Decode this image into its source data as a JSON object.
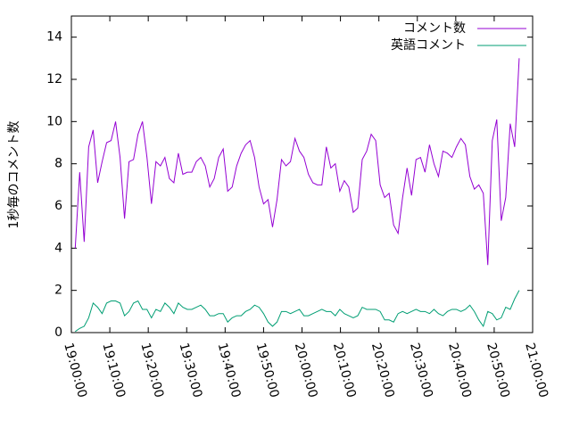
{
  "chart_data": {
    "type": "line",
    "y_label": "1秒毎のコメント数",
    "x": [
      "19:01:00",
      "19:02:10",
      "19:03:20",
      "19:04:30",
      "19:05:40",
      "19:06:50",
      "19:08:00",
      "19:09:10",
      "19:10:20",
      "19:11:30",
      "19:12:40",
      "19:13:50",
      "19:15:00",
      "19:16:10",
      "19:17:20",
      "19:18:30",
      "19:19:40",
      "19:20:50",
      "19:22:00",
      "19:23:10",
      "19:24:20",
      "19:25:30",
      "19:26:40",
      "19:27:50",
      "19:29:00",
      "19:30:10",
      "19:31:20",
      "19:32:30",
      "19:33:40",
      "19:34:50",
      "19:36:00",
      "19:37:10",
      "19:38:20",
      "19:39:30",
      "19:40:40",
      "19:41:50",
      "19:43:00",
      "19:44:10",
      "19:45:20",
      "19:46:30",
      "19:47:40",
      "19:48:50",
      "19:50:00",
      "19:51:10",
      "19:52:20",
      "19:53:30",
      "19:54:40",
      "19:55:50",
      "19:57:00",
      "19:58:10",
      "19:59:20",
      "20:00:30",
      "20:01:40",
      "20:02:50",
      "20:04:00",
      "20:05:10",
      "20:06:20",
      "20:07:30",
      "20:08:40",
      "20:09:50",
      "20:11:00",
      "20:12:10",
      "20:13:20",
      "20:14:30",
      "20:15:40",
      "20:16:50",
      "20:18:00",
      "20:19:10",
      "20:20:20",
      "20:21:30",
      "20:22:40",
      "20:23:50",
      "20:25:00",
      "20:26:10",
      "20:27:20",
      "20:28:30",
      "20:29:40",
      "20:30:50",
      "20:32:00",
      "20:33:10",
      "20:34:20",
      "20:35:30",
      "20:36:40",
      "20:37:50",
      "20:39:00",
      "20:40:10",
      "20:41:20",
      "20:42:30",
      "20:43:40",
      "20:44:50",
      "20:46:00",
      "20:47:10",
      "20:48:20",
      "20:49:30",
      "20:50:40",
      "20:51:50",
      "20:53:00",
      "20:54:10",
      "20:55:20",
      "20:56:30"
    ],
    "series": [
      {
        "name": "コメント数",
        "color": "#9400d3",
        "values": [
          4.0,
          7.6,
          4.3,
          8.8,
          9.6,
          7.1,
          8.1,
          9.0,
          9.1,
          10.0,
          8.3,
          5.4,
          8.1,
          8.2,
          9.4,
          10.0,
          8.3,
          6.1,
          8.1,
          7.9,
          8.3,
          7.3,
          7.1,
          8.5,
          7.5,
          7.6,
          7.6,
          8.1,
          8.3,
          7.9,
          6.9,
          7.3,
          8.3,
          8.7,
          6.7,
          6.9,
          7.9,
          8.5,
          8.9,
          9.1,
          8.3,
          6.9,
          6.1,
          6.3,
          5.0,
          6.3,
          8.2,
          7.9,
          8.1,
          9.2,
          8.6,
          8.3,
          7.5,
          7.1,
          7.0,
          7.0,
          8.8,
          7.8,
          8.0,
          6.7,
          7.2,
          6.9,
          5.7,
          5.9,
          8.2,
          8.6,
          9.4,
          9.1,
          7.0,
          6.4,
          6.6,
          5.1,
          4.7,
          6.4,
          7.8,
          6.5,
          8.2,
          8.3,
          7.6,
          8.9,
          8.0,
          7.4,
          8.6,
          8.5,
          8.3,
          8.8,
          9.2,
          8.9,
          7.4,
          6.8,
          7.0,
          6.6,
          3.2,
          9.1,
          10.1,
          5.3,
          6.4,
          9.9,
          8.8,
          13.0
        ]
      },
      {
        "name": "英語コメント",
        "color": "#009e73",
        "values": [
          0.05,
          0.2,
          0.3,
          0.7,
          1.4,
          1.2,
          0.9,
          1.4,
          1.5,
          1.5,
          1.4,
          0.8,
          1.0,
          1.4,
          1.5,
          1.1,
          1.1,
          0.7,
          1.1,
          1.0,
          1.4,
          1.2,
          0.9,
          1.4,
          1.2,
          1.1,
          1.1,
          1.2,
          1.3,
          1.1,
          0.8,
          0.8,
          0.9,
          0.9,
          0.5,
          0.7,
          0.8,
          0.8,
          1.0,
          1.1,
          1.3,
          1.2,
          0.9,
          0.5,
          0.3,
          0.5,
          1.0,
          1.0,
          0.9,
          1.0,
          1.1,
          0.8,
          0.8,
          0.9,
          1.0,
          1.1,
          1.0,
          1.0,
          0.8,
          1.1,
          0.9,
          0.8,
          0.7,
          0.8,
          1.2,
          1.1,
          1.1,
          1.1,
          1.0,
          0.6,
          0.6,
          0.5,
          0.9,
          1.0,
          0.9,
          1.0,
          1.1,
          1.0,
          1.0,
          0.9,
          1.1,
          0.9,
          0.8,
          1.0,
          1.1,
          1.1,
          1.0,
          1.1,
          1.3,
          1.0,
          0.6,
          0.3,
          1.0,
          0.9,
          0.6,
          0.7,
          1.2,
          1.1,
          1.6,
          2.0
        ]
      }
    ],
    "xlim": [
      "19:00:00",
      "21:00:00"
    ],
    "xticks": [
      "19:00:00",
      "19:10:00",
      "19:20:00",
      "19:30:00",
      "19:40:00",
      "19:50:00",
      "20:00:00",
      "20:10:00",
      "20:20:00",
      "20:30:00",
      "20:40:00",
      "20:50:00",
      "21:00:00"
    ],
    "ylim": [
      0,
      15
    ],
    "yticks": [
      0,
      2,
      4,
      6,
      8,
      10,
      12,
      14
    ],
    "legend": "top-right"
  }
}
